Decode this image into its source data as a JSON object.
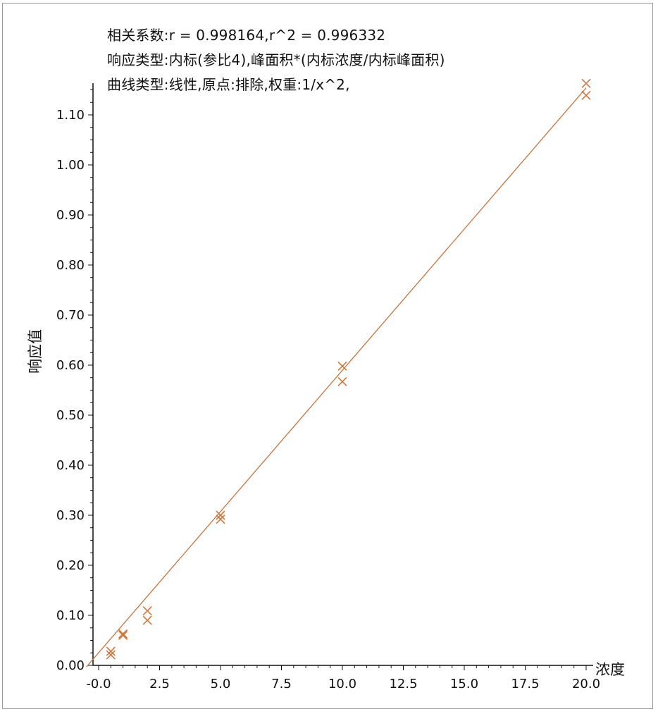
{
  "header_lines": [
    "相关系数:r = 0.998164,r^2 = 0.996332",
    "响应类型:内标(参比4),峰面积*(内标浓度/内标峰面积)",
    "曲线类型:线性,原点:排除,权重:1/x^2,"
  ],
  "chart_data": {
    "type": "scatter",
    "xlabel": "浓度",
    "ylabel": "响应值",
    "xlim": [
      -0.5,
      20.0
    ],
    "ylim": [
      0.0,
      1.15
    ],
    "x_ticks": [
      "-0.0",
      "2.5",
      "5.0",
      "7.5",
      "10.0",
      "12.5",
      "15.0",
      "17.5",
      "20.0"
    ],
    "y_ticks": [
      "0.00",
      "0.10",
      "0.20",
      "0.30",
      "0.40",
      "0.50",
      "0.60",
      "0.70",
      "0.80",
      "0.90",
      "1.00",
      "1.10"
    ],
    "points": [
      {
        "x": 0.5,
        "y": 0.028
      },
      {
        "x": 0.5,
        "y": 0.021
      },
      {
        "x": 1.0,
        "y": 0.063
      },
      {
        "x": 1.0,
        "y": 0.06
      },
      {
        "x": 2.0,
        "y": 0.109
      },
      {
        "x": 2.0,
        "y": 0.09
      },
      {
        "x": 5.0,
        "y": 0.3
      },
      {
        "x": 5.0,
        "y": 0.292
      },
      {
        "x": 10.0,
        "y": 0.598
      },
      {
        "x": 10.0,
        "y": 0.567
      },
      {
        "x": 20.0,
        "y": 1.163
      },
      {
        "x": 20.0,
        "y": 1.139
      }
    ],
    "fit_line": {
      "x": [
        -0.5,
        20.0
      ],
      "y": [
        -0.003,
        1.154
      ]
    },
    "colors": {
      "marker": "#d2773b",
      "line": "#c8733a",
      "axis": "#111111"
    }
  }
}
